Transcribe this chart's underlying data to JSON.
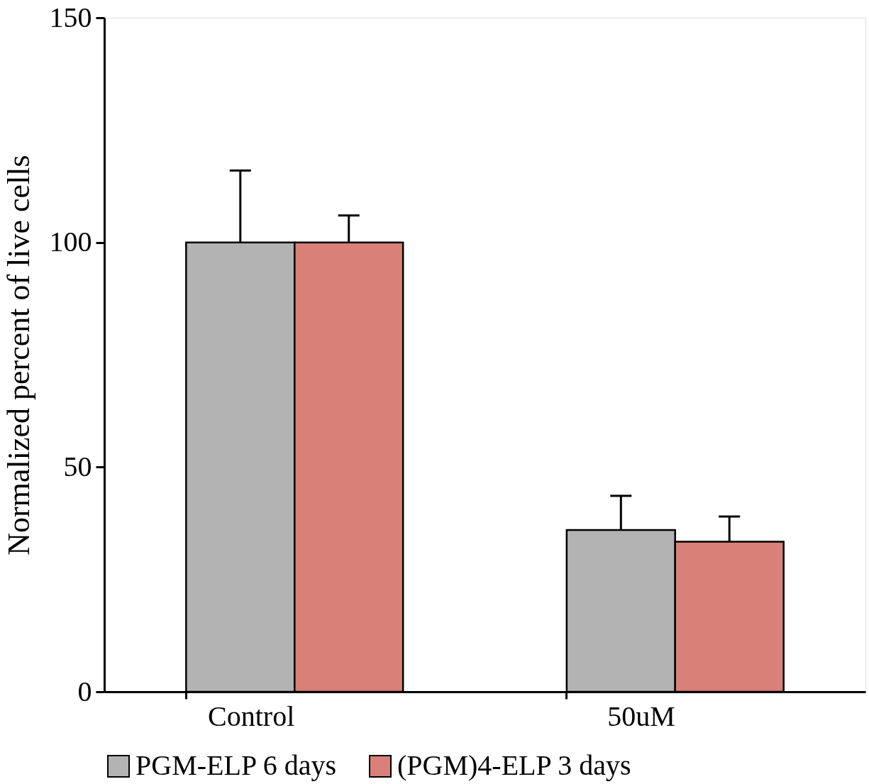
{
  "chart_data": {
    "type": "bar",
    "ylabel": "Normalized percent of live cells",
    "categories": [
      "Control",
      "50uM"
    ],
    "series": [
      {
        "name": "PGM-ELP 6 days",
        "color": "#b3b3b3",
        "values": [
          100,
          36
        ],
        "errors": [
          [
            100,
            116
          ],
          [
            36,
            43.6
          ]
        ]
      },
      {
        "name": "(PGM)4-ELP 3 days",
        "color": "#d98079",
        "values": [
          100,
          33.4
        ],
        "errors": [
          [
            100,
            106
          ],
          [
            33.4,
            39
          ]
        ]
      }
    ],
    "ylim": [
      0,
      150
    ],
    "yticks": [
      0,
      50,
      100,
      150
    ],
    "grid": false,
    "legend": "bottom"
  }
}
